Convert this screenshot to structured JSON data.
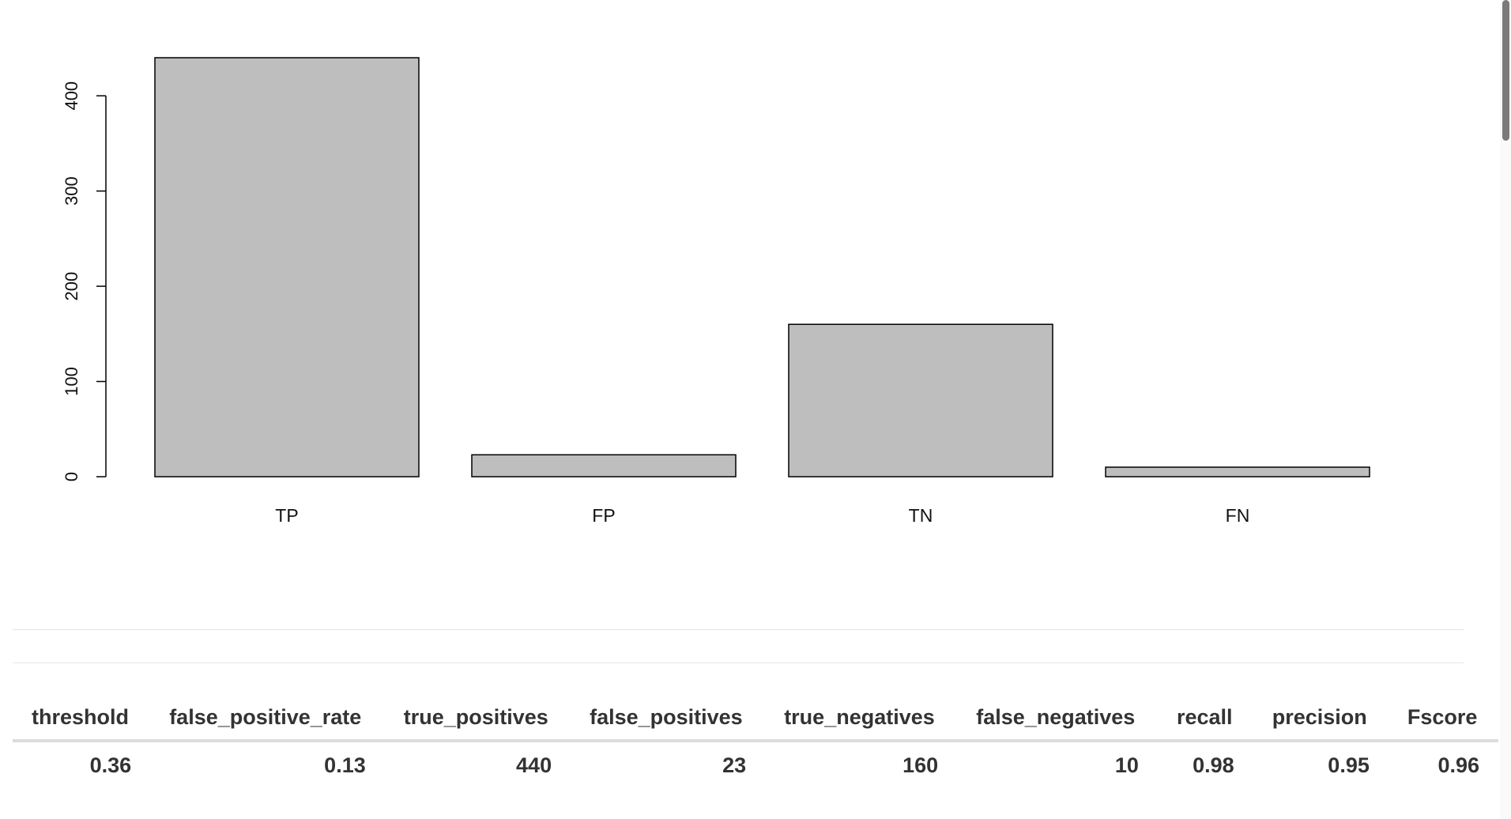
{
  "chart_data": {
    "type": "bar",
    "title": "",
    "xlabel": "",
    "ylabel": "",
    "categories": [
      "TP",
      "FP",
      "TN",
      "FN"
    ],
    "values": [
      440,
      23,
      160,
      10
    ],
    "ylim": [
      0,
      440
    ],
    "yticks": [
      "0",
      "100",
      "200",
      "300",
      "400"
    ],
    "bar_fill": "#bebebe",
    "bar_stroke": "#000000",
    "grid": false,
    "legend": "none"
  },
  "table": {
    "headers": [
      "threshold",
      "false_positive_rate",
      "true_positives",
      "false_positives",
      "true_negatives",
      "false_negatives",
      "recall",
      "precision",
      "Fscore"
    ],
    "rows": [
      [
        "0.36",
        "0.13",
        "440",
        "23",
        "160",
        "10",
        "0.98",
        "0.95",
        "0.96"
      ]
    ]
  }
}
